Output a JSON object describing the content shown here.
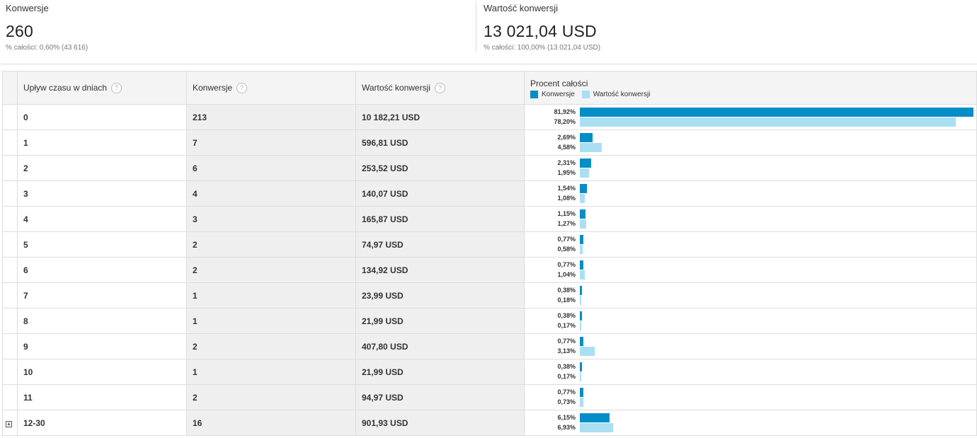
{
  "summary": {
    "conversions": {
      "label": "Konwersje",
      "value": "260",
      "sub": "% całości: 0,60% (43 616)"
    },
    "value": {
      "label": "Wartość konwersji",
      "value": "13 021,04 USD",
      "sub": "% całości: 100,00% (13 021,04 USD)"
    }
  },
  "table": {
    "headers": {
      "dimension": "Upływ czasu w dniach",
      "conversions": "Konwersje",
      "value": "Wartość konwersji",
      "percent": "Procent całości",
      "help_icon": "?"
    },
    "legend": {
      "conversions": "Konwersje",
      "value": "Wartość konwersji"
    },
    "expand_icon": "+",
    "rows": [
      {
        "days": "0",
        "conversions": "213",
        "value": "10 182,21 USD",
        "pct_conv": "81,92%",
        "pct_val": "78,20%",
        "conv_num": 81.92,
        "val_num": 78.2
      },
      {
        "days": "1",
        "conversions": "7",
        "value": "596,81 USD",
        "pct_conv": "2,69%",
        "pct_val": "4,58%",
        "conv_num": 2.69,
        "val_num": 4.58
      },
      {
        "days": "2",
        "conversions": "6",
        "value": "253,52 USD",
        "pct_conv": "2,31%",
        "pct_val": "1,95%",
        "conv_num": 2.31,
        "val_num": 1.95
      },
      {
        "days": "3",
        "conversions": "4",
        "value": "140,07 USD",
        "pct_conv": "1,54%",
        "pct_val": "1,08%",
        "conv_num": 1.54,
        "val_num": 1.08
      },
      {
        "days": "4",
        "conversions": "3",
        "value": "165,87 USD",
        "pct_conv": "1,15%",
        "pct_val": "1,27%",
        "conv_num": 1.15,
        "val_num": 1.27
      },
      {
        "days": "5",
        "conversions": "2",
        "value": "74,97 USD",
        "pct_conv": "0,77%",
        "pct_val": "0,58%",
        "conv_num": 0.77,
        "val_num": 0.58
      },
      {
        "days": "6",
        "conversions": "2",
        "value": "134,92 USD",
        "pct_conv": "0,77%",
        "pct_val": "1,04%",
        "conv_num": 0.77,
        "val_num": 1.04
      },
      {
        "days": "7",
        "conversions": "1",
        "value": "23,99 USD",
        "pct_conv": "0,38%",
        "pct_val": "0,18%",
        "conv_num": 0.38,
        "val_num": 0.18
      },
      {
        "days": "8",
        "conversions": "1",
        "value": "21,99 USD",
        "pct_conv": "0,38%",
        "pct_val": "0,17%",
        "conv_num": 0.38,
        "val_num": 0.17
      },
      {
        "days": "9",
        "conversions": "2",
        "value": "407,80 USD",
        "pct_conv": "0,77%",
        "pct_val": "3,13%",
        "conv_num": 0.77,
        "val_num": 3.13
      },
      {
        "days": "10",
        "conversions": "1",
        "value": "21,99 USD",
        "pct_conv": "0,38%",
        "pct_val": "0,17%",
        "conv_num": 0.38,
        "val_num": 0.17
      },
      {
        "days": "11",
        "conversions": "2",
        "value": "94,97 USD",
        "pct_conv": "0,77%",
        "pct_val": "0,73%",
        "conv_num": 0.77,
        "val_num": 0.73
      },
      {
        "days": "12-30",
        "conversions": "16",
        "value": "901,93 USD",
        "pct_conv": "6,15%",
        "pct_val": "6,93%",
        "conv_num": 6.15,
        "val_num": 6.93,
        "expandable": true
      }
    ]
  },
  "colors": {
    "conversions_bar": "#058dc7",
    "value_bar": "#aadff3"
  }
}
